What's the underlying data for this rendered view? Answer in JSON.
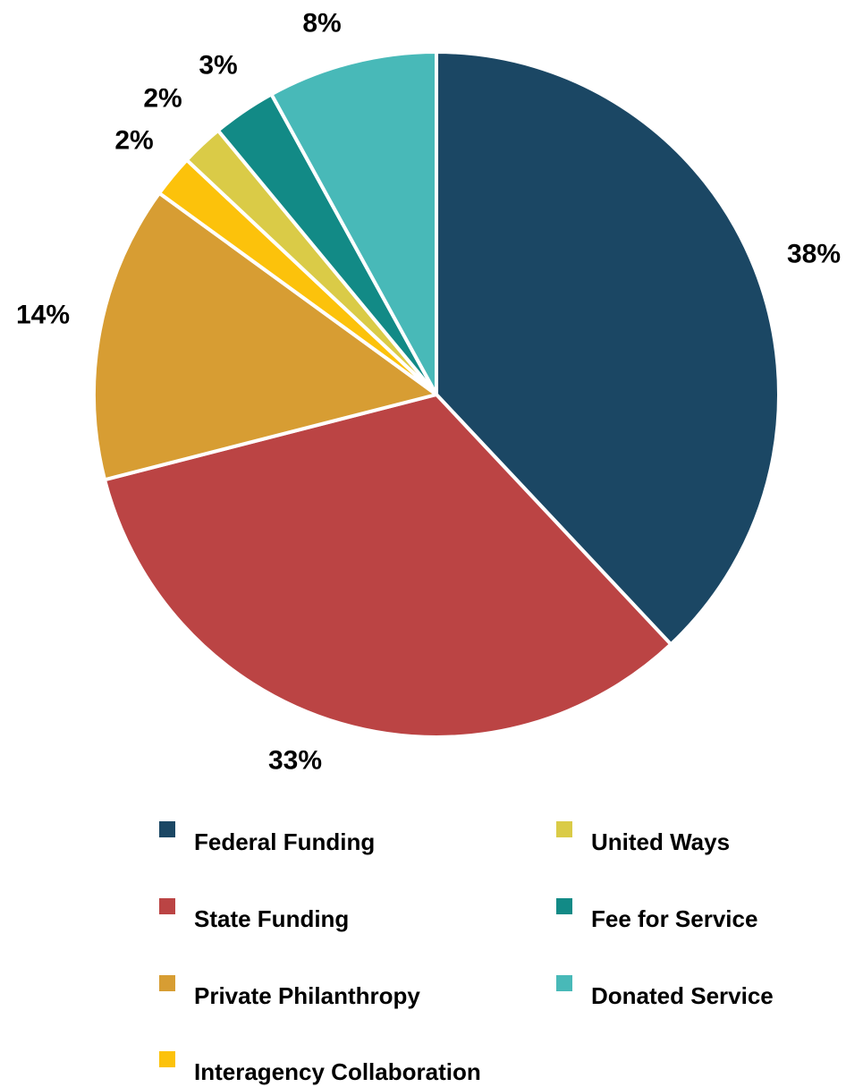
{
  "chart_data": {
    "type": "pie",
    "title": "",
    "slices": [
      {
        "label": "Federal Funding",
        "value": 38,
        "display": "38%",
        "color": "#1b4764"
      },
      {
        "label": "State Funding",
        "value": 33,
        "display": "33%",
        "color": "#bb4444"
      },
      {
        "label": "Private Philanthropy",
        "value": 14,
        "display": "14%",
        "color": "#d79d33"
      },
      {
        "label": "Interagency Collaboration",
        "value": 2,
        "display": "2%",
        "color": "#fcc20b"
      },
      {
        "label": "United Ways",
        "value": 2,
        "display": "2%",
        "color": "#dacb47"
      },
      {
        "label": "Fee for Service",
        "value": 3,
        "display": "3%",
        "color": "#128a86"
      },
      {
        "label": "Donated Service",
        "value": 8,
        "display": "8%",
        "color": "#48b9b8"
      }
    ],
    "legend_position": "bottom"
  },
  "legend": {
    "items": [
      {
        "label": "Federal Funding",
        "color": "#1b4764"
      },
      {
        "label": "State Funding",
        "color": "#bb4444"
      },
      {
        "label": "Private Philanthropy",
        "color": "#d79d33"
      },
      {
        "label": "Interagency Collaboration",
        "color": "#fcc20b"
      },
      {
        "label": "United Ways",
        "color": "#dacb47"
      },
      {
        "label": "Fee for Service",
        "color": "#128a86"
      },
      {
        "label": "Donated Service",
        "color": "#48b9b8"
      }
    ]
  }
}
